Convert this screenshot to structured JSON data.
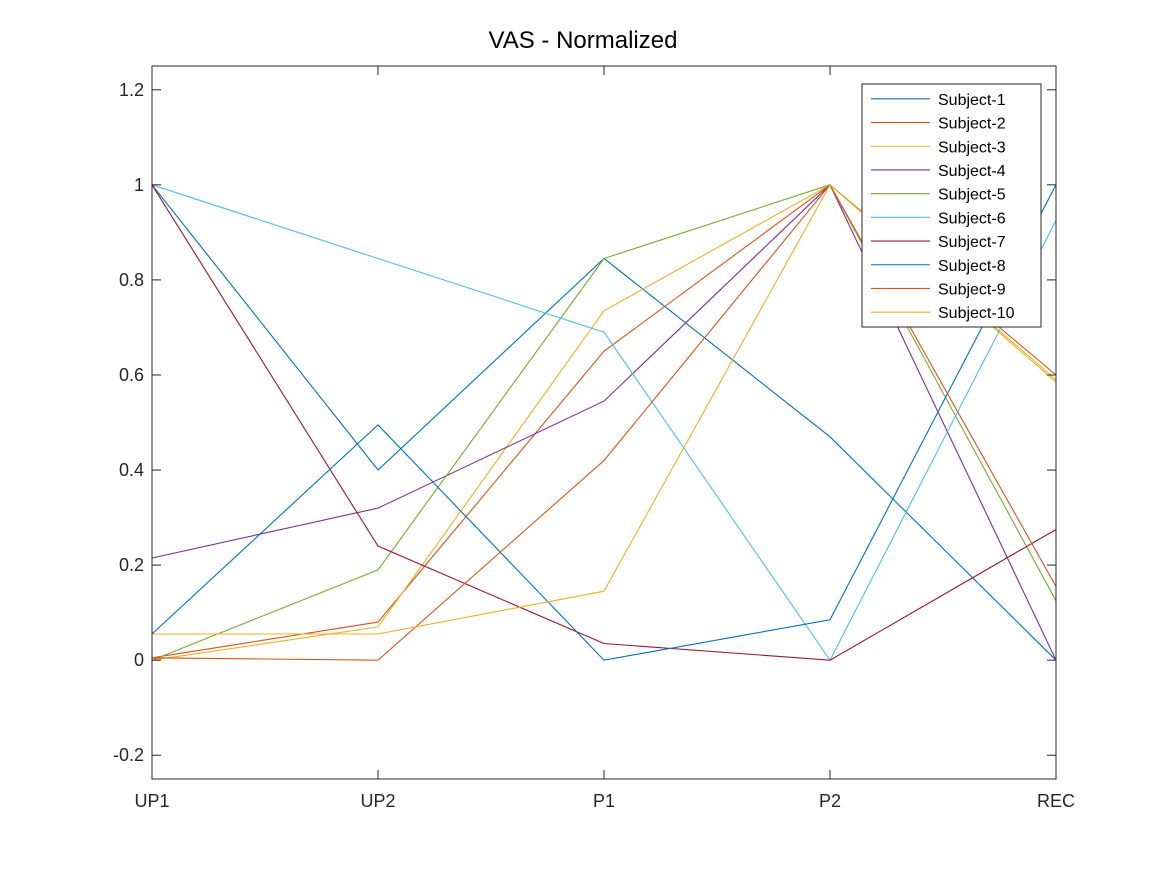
{
  "chart_data": {
    "type": "line",
    "title": "VAS - Normalized",
    "xlabel": "",
    "ylabel": "",
    "categories": [
      "UP1",
      "UP2",
      "P1",
      "P2",
      "REC"
    ],
    "ylim": [
      -0.25,
      1.25
    ],
    "yticks": [
      "-0.2",
      "0",
      "0.2",
      "0.4",
      "0.6",
      "0.8",
      "1",
      "1.2"
    ],
    "grid": false,
    "legend_position": "top-right",
    "series": [
      {
        "name": "Subject-1",
        "color": "#0072BD",
        "values": [
          1.0,
          0.4,
          0.845,
          0.47,
          0.0
        ]
      },
      {
        "name": "Subject-2",
        "color": "#D95319",
        "values": [
          0.005,
          0.08,
          0.65,
          1.0,
          0.6
        ]
      },
      {
        "name": "Subject-3",
        "color": "#EDB120",
        "values": [
          0.0,
          0.07,
          0.735,
          1.0,
          0.585
        ]
      },
      {
        "name": "Subject-4",
        "color": "#7E2F8E",
        "values": [
          0.215,
          0.32,
          0.545,
          1.0,
          0.0
        ]
      },
      {
        "name": "Subject-5",
        "color": "#77AC30",
        "values": [
          0.0,
          0.19,
          0.845,
          1.0,
          0.125
        ]
      },
      {
        "name": "Subject-6",
        "color": "#4DBEEE",
        "values": [
          1.0,
          0.845,
          0.69,
          0.0,
          0.925
        ]
      },
      {
        "name": "Subject-7",
        "color": "#A2142F",
        "values": [
          1.0,
          0.24,
          0.035,
          0.0,
          0.275
        ]
      },
      {
        "name": "Subject-8",
        "color": "#0072BD",
        "values": [
          0.055,
          0.495,
          0.0,
          0.085,
          1.0
        ]
      },
      {
        "name": "Subject-9",
        "color": "#D95319",
        "values": [
          0.005,
          0.0,
          0.42,
          1.0,
          0.155
        ]
      },
      {
        "name": "Subject-10",
        "color": "#EDB120",
        "values": [
          0.055,
          0.055,
          0.145,
          1.0,
          0.59
        ]
      }
    ]
  }
}
